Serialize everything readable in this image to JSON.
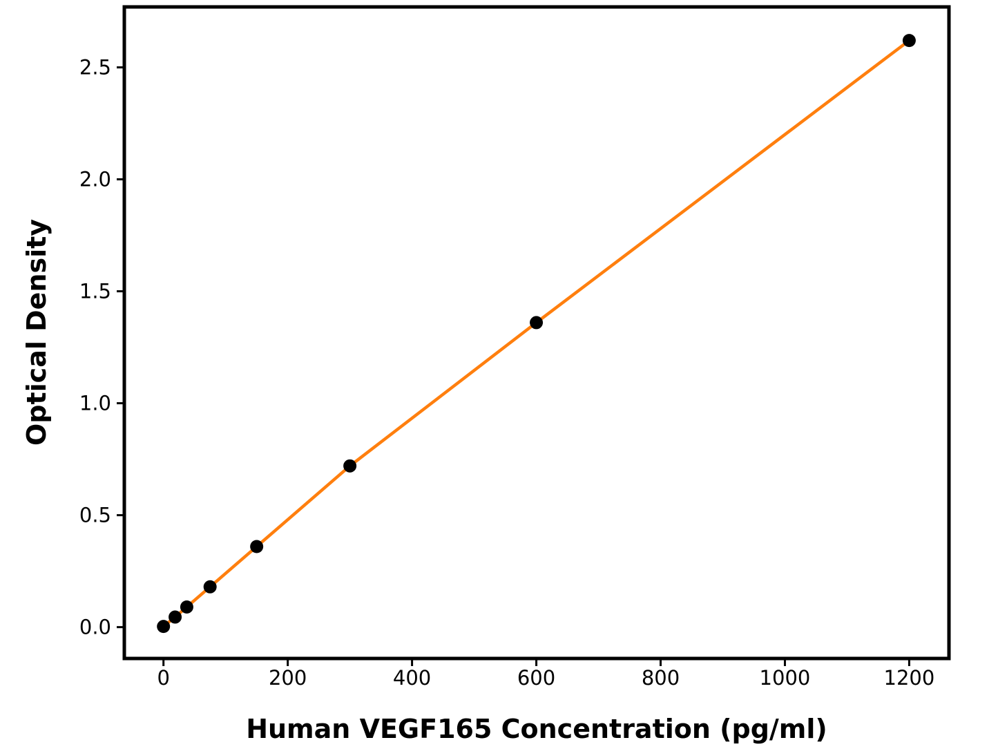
{
  "chart_data": {
    "type": "line",
    "title": "",
    "xlabel": "Human VEGF165 Concentration (pg/ml)",
    "ylabel": "Optical Density",
    "x": [
      0,
      18.75,
      37.5,
      75,
      150,
      300,
      600,
      1200
    ],
    "y": [
      0.003,
      0.045,
      0.09,
      0.18,
      0.36,
      0.72,
      1.36,
      2.62
    ],
    "xlim": [
      -63,
      1264
    ],
    "ylim": [
      -0.14,
      2.77
    ],
    "x_ticks": [
      0,
      200,
      400,
      600,
      800,
      1000,
      1200
    ],
    "x_tick_labels": [
      "0",
      "200",
      "400",
      "600",
      "800",
      "1000",
      "1200"
    ],
    "y_ticks": [
      0.0,
      0.5,
      1.0,
      1.5,
      2.0,
      2.5
    ],
    "y_tick_labels": [
      "0.0",
      "0.5",
      "1.0",
      "1.5",
      "2.0",
      "2.5"
    ],
    "grid": false,
    "legend": "none",
    "line_color": "#ff7f0e",
    "marker_color": "#000000",
    "marker_shape": "circle",
    "background": "#ffffff"
  }
}
